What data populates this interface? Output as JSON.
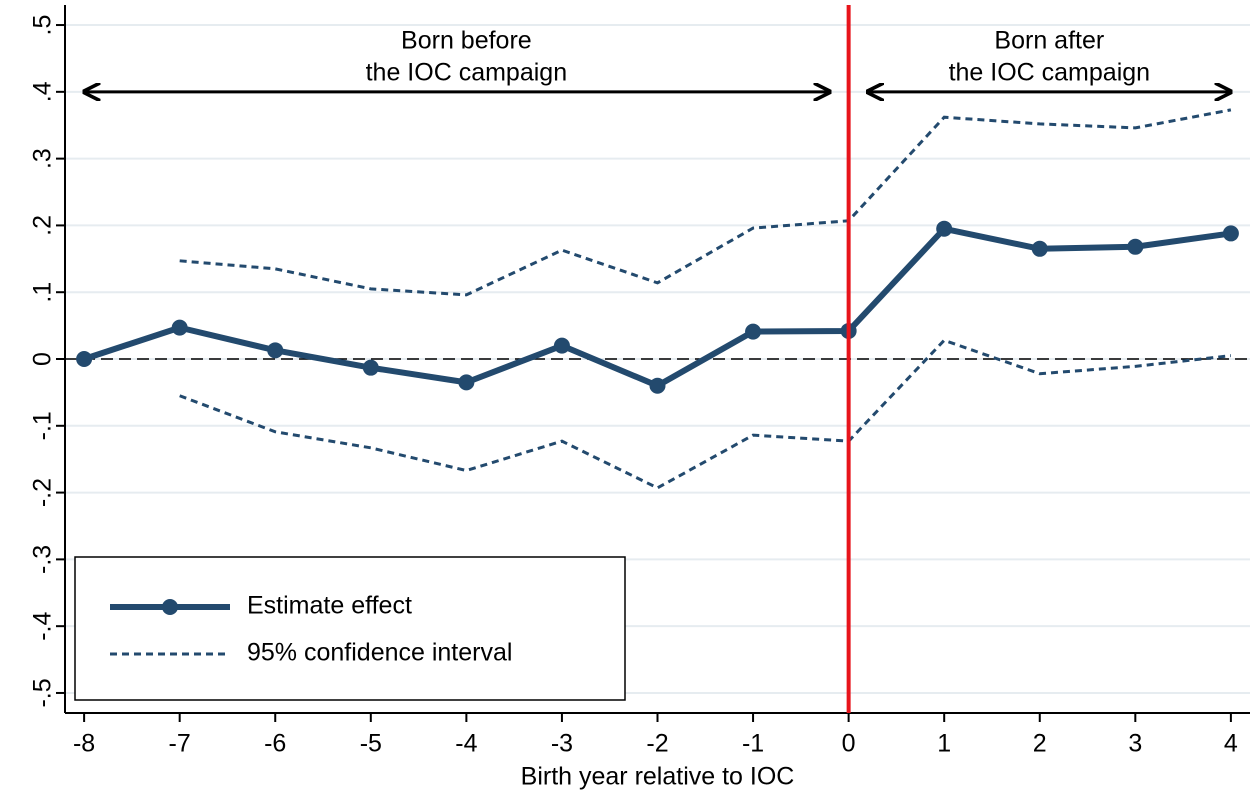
{
  "chart_data": {
    "type": "line",
    "xlabel": "Birth year relative to IOC",
    "x": [
      -8,
      -7,
      -6,
      -5,
      -4,
      -3,
      -2,
      -1,
      0,
      1,
      2,
      3,
      4
    ],
    "series": [
      {
        "name": "Estimate effect",
        "color": "#234a6e",
        "values": [
          0,
          0.047,
          0.013,
          -0.013,
          -0.035,
          0.02,
          -0.04,
          0.041,
          0.042,
          0.195,
          0.165,
          0.168,
          0.188
        ]
      },
      {
        "name": "95% confidence interval",
        "color": "#234a6e",
        "upper": [
          null,
          0.147,
          0.135,
          0.105,
          0.096,
          0.163,
          0.114,
          0.196,
          0.207,
          0.362,
          0.352,
          0.346,
          0.373
        ],
        "lower": [
          null,
          -0.055,
          -0.109,
          -0.133,
          -0.167,
          -0.123,
          -0.193,
          -0.114,
          -0.123,
          0.028,
          -0.022,
          -0.011,
          0.005
        ]
      }
    ],
    "xlim": [
      -8.2,
      4.2
    ],
    "ylim": [
      -0.53,
      0.53
    ],
    "xticks": [
      -8,
      -7,
      -6,
      -5,
      -4,
      -3,
      -2,
      -1,
      0,
      1,
      2,
      3,
      4
    ],
    "yticks": [
      {
        "value": 0.5,
        "label": ".5"
      },
      {
        "value": 0.4,
        "label": ".4"
      },
      {
        "value": 0.3,
        "label": ".3"
      },
      {
        "value": 0.2,
        "label": ".2"
      },
      {
        "value": 0.1,
        "label": ".1"
      },
      0,
      {
        "value": -0.1,
        "label": "-.1"
      },
      {
        "value": -0.2,
        "label": "-.2"
      },
      {
        "value": -0.3,
        "label": "-.3"
      },
      {
        "value": -0.4,
        "label": "-.4"
      },
      {
        "value": -0.5,
        "label": "-.5"
      }
    ],
    "grid": true,
    "vline": {
      "value": 0,
      "color": "#e8141b"
    },
    "hline": 0,
    "annotations": [
      {
        "lines": [
          "Born before",
          "the IOC campaign"
        ],
        "x": -4,
        "from": -8,
        "to": -0.2,
        "y": 0.4
      },
      {
        "lines": [
          "Born after",
          "the IOC campaign"
        ],
        "x": 2.1,
        "from": 0.2,
        "to": 4,
        "y": 0.4
      }
    ],
    "legend": "lower left"
  }
}
